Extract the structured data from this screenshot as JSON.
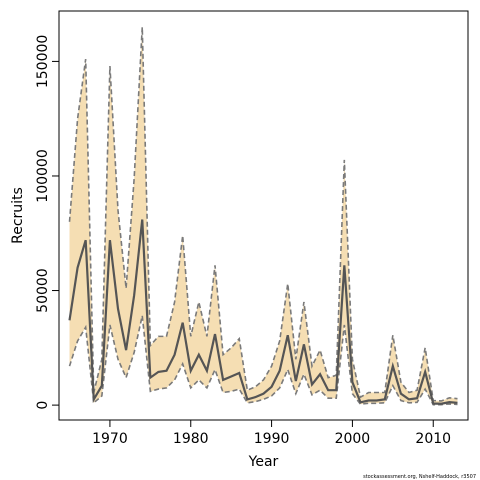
{
  "chart_data": {
    "type": "line",
    "xlabel": "Year",
    "ylabel": "Recruits",
    "xlim": [
      1963.7,
      2014.3
    ],
    "ylim": [
      -6500,
      172000
    ],
    "x_ticks": [
      1970,
      1980,
      1990,
      2000,
      2010
    ],
    "x_tick_labels": [
      "1970",
      "1980",
      "1990",
      "2000",
      "2010"
    ],
    "y_ticks": [
      0,
      50000,
      100000,
      150000
    ],
    "y_tick_labels": [
      "0",
      "50000",
      "100000",
      "150000"
    ],
    "colors": {
      "band": "#f5deb3",
      "median_line": "#555555",
      "bound_line": "#7a7a7a",
      "frame": "#000000"
    },
    "series": [
      {
        "role": "median",
        "x": [
          1965,
          1966,
          1967,
          1968,
          1969,
          1970,
          1971,
          1972,
          1973,
          1974,
          1975,
          1976,
          1977,
          1978,
          1979,
          1980,
          1981,
          1982,
          1983,
          1984,
          1985,
          1986,
          1987,
          1988,
          1989,
          1990,
          1991,
          1992,
          1993,
          1994,
          1995,
          1996,
          1997,
          1998,
          1999,
          2000,
          2001,
          2002,
          2003,
          2004,
          2005,
          2006,
          2007,
          2008,
          2009,
          2010,
          2011,
          2012,
          2013
        ],
        "values": [
          37000,
          60000,
          72000,
          2500,
          8500,
          72000,
          42000,
          24000,
          48000,
          81000,
          12000,
          14500,
          15000,
          22000,
          36000,
          15000,
          22000,
          15000,
          31000,
          11000,
          12500,
          14000,
          2500,
          3500,
          5000,
          8000,
          15000,
          30500,
          10500,
          26500,
          9000,
          13500,
          6500,
          6500,
          61000,
          10000,
          1200,
          2000,
          2000,
          2500,
          17000,
          5000,
          2500,
          3000,
          14500,
          700,
          600,
          1300,
          1000
        ]
      },
      {
        "role": "upper",
        "x": [
          1965,
          1966,
          1967,
          1968,
          1969,
          1970,
          1971,
          1972,
          1973,
          1974,
          1975,
          1976,
          1977,
          1978,
          1979,
          1980,
          1981,
          1982,
          1983,
          1984,
          1985,
          1986,
          1987,
          1988,
          1989,
          1990,
          1991,
          1992,
          1993,
          1994,
          1995,
          1996,
          1997,
          1998,
          1999,
          2000,
          2001,
          2002,
          2003,
          2004,
          2005,
          2006,
          2007,
          2008,
          2009,
          2010,
          2011,
          2012,
          2013
        ],
        "values": [
          80000,
          125000,
          151000,
          5500,
          20000,
          148000,
          85000,
          51000,
          99000,
          165000,
          26000,
          30000,
          30000,
          45000,
          74000,
          30000,
          45000,
          30000,
          61000,
          22000,
          25000,
          29000,
          6500,
          8000,
          11000,
          17000,
          28000,
          53000,
          20000,
          45000,
          17000,
          24000,
          12000,
          13000,
          107000,
          20000,
          3500,
          5500,
          5500,
          5500,
          30500,
          10000,
          5500,
          6500,
          25000,
          2000,
          1800,
          3200,
          2800
        ]
      },
      {
        "role": "lower",
        "x": [
          1965,
          1966,
          1967,
          1968,
          1969,
          1970,
          1971,
          1972,
          1973,
          1974,
          1975,
          1976,
          1977,
          1978,
          1979,
          1980,
          1981,
          1982,
          1983,
          1984,
          1985,
          1986,
          1987,
          1988,
          1989,
          1990,
          1991,
          1992,
          1993,
          1994,
          1995,
          1996,
          1997,
          1998,
          1999,
          2000,
          2001,
          2002,
          2003,
          2004,
          2005,
          2006,
          2007,
          2008,
          2009,
          2010,
          2011,
          2012,
          2013
        ],
        "values": [
          17000,
          28000,
          34000,
          1000,
          4000,
          35000,
          20000,
          12000,
          23000,
          39000,
          6000,
          7000,
          7500,
          11000,
          18000,
          7500,
          11000,
          7500,
          15500,
          5500,
          6000,
          7000,
          1000,
          1500,
          2500,
          4000,
          7500,
          15500,
          5000,
          13500,
          4500,
          6500,
          3000,
          3000,
          35000,
          5000,
          400,
          800,
          800,
          1000,
          8500,
          2000,
          1000,
          1200,
          7000,
          200,
          200,
          500,
          300
        ]
      }
    ]
  },
  "credit": "stockassessment.org, Nshelf-Haddock, r3507"
}
